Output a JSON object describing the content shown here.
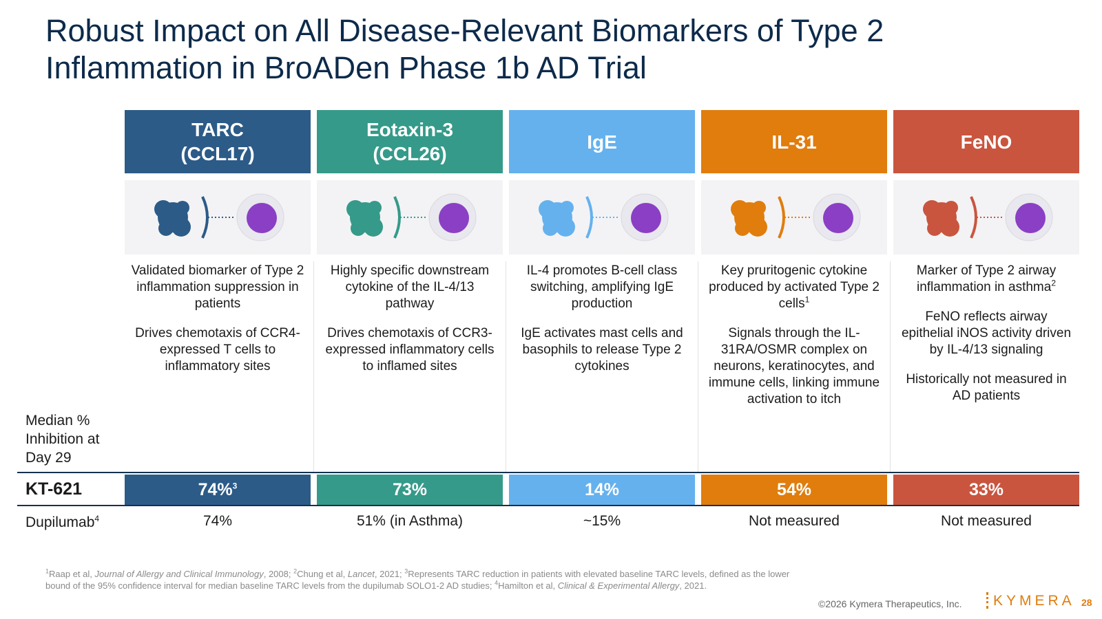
{
  "title": [
    "Robust Impact on All Disease-Relevant Biomarkers of Type 2",
    "Inflammation in BroADen Phase 1b AD Trial"
  ],
  "row_label": [
    "Median %",
    "Inhibition at",
    "Day 29"
  ],
  "kt621_label": "KT-621",
  "dupilumab_label": {
    "text": "Dupilumab",
    "sup": "4"
  },
  "columns": [
    {
      "header": [
        "TARC",
        "(CCL17)"
      ],
      "color": "#2c5b88",
      "description": [
        {
          "text": "Validated biomarker of Type 2 inflammation suppression in patients"
        },
        {
          "text": "Drives chemotaxis of CCR4-expressed T cells to inflammatory sites"
        }
      ],
      "kt621": {
        "text": "74%",
        "sup": "3"
      },
      "dupilumab": "74%"
    },
    {
      "header": [
        "Eotaxin-3",
        "(CCL26)"
      ],
      "color": "#359a89",
      "description": [
        {
          "text": "Highly specific downstream cytokine of the IL-4/13 pathway"
        },
        {
          "text": "Drives chemotaxis of CCR3-expressed inflammatory cells to inflamed sites"
        }
      ],
      "kt621": {
        "text": "73%"
      },
      "dupilumab": "51% (in Asthma)"
    },
    {
      "header": [
        "IgE"
      ],
      "color": "#65b1ee",
      "description": [
        {
          "text": "IL-4 promotes B-cell class switching, amplifying IgE production"
        },
        {
          "text": "IgE activates mast cells and basophils to release Type 2 cytokines"
        }
      ],
      "kt621": {
        "text": "14%"
      },
      "dupilumab": "~15%"
    },
    {
      "header": [
        "IL-31"
      ],
      "color": "#e07d0d",
      "description": [
        {
          "text": "Key pruritogenic cytokine produced by activated Type 2 cells",
          "sup": "1"
        },
        {
          "text": "Signals through the IL-31RA/OSMR complex on neurons, keratinocytes, and immune cells, linking immune activation to itch"
        }
      ],
      "kt621": {
        "text": "54%"
      },
      "dupilumab": "Not measured"
    },
    {
      "header": [
        "FeNO"
      ],
      "color": "#c9553f",
      "description": [
        {
          "text": "Marker of Type 2 airway inflammation in asthma",
          "sup": "2"
        },
        {
          "text": "FeNO reflects airway epithelial iNOS activity driven by IL-4/13 signaling"
        },
        {
          "text": "Historically not measured in AD patients"
        }
      ],
      "kt621": {
        "text": "33%"
      },
      "dupilumab": "Not measured"
    }
  ],
  "footnote": [
    {
      "t": "1",
      "s": "sup"
    },
    {
      "t": "Raap et al, "
    },
    {
      "t": "Journal of Allergy and Clinical Immunology",
      "s": "i"
    },
    {
      "t": ", 2008; "
    },
    {
      "t": "2",
      "s": "sup"
    },
    {
      "t": "Chung et al, "
    },
    {
      "t": "Lancet",
      "s": "i"
    },
    {
      "t": ", 2021; "
    },
    {
      "t": "3",
      "s": "sup"
    },
    {
      "t": "Represents TARC reduction in patients with elevated baseline TARC levels, defined as the lower bound of the 95% confidence interval for median baseline TARC levels from the dupilumab SOLO1-2 AD studies; "
    },
    {
      "t": "4",
      "s": "sup"
    },
    {
      "t": "Hamilton et al, "
    },
    {
      "t": "Clinical & Experimental Allergy",
      "s": "i"
    },
    {
      "t": ", 2021."
    }
  ],
  "copyright": "©2026 Kymera Therapeutics, Inc.",
  "logo": "KYMERA",
  "page_number": "28"
}
